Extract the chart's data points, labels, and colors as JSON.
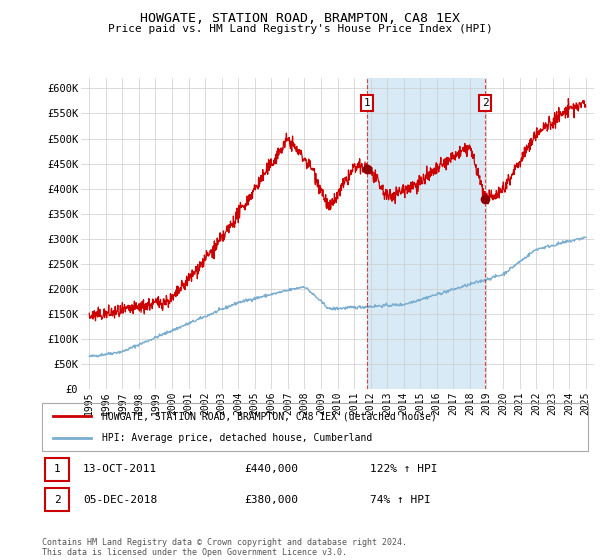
{
  "title": "HOWGATE, STATION ROAD, BRAMPTON, CA8 1EX",
  "subtitle": "Price paid vs. HM Land Registry's House Price Index (HPI)",
  "legend_line1": "HOWGATE, STATION ROAD, BRAMPTON, CA8 1EX (detached house)",
  "legend_line2": "HPI: Average price, detached house, Cumberland",
  "annotation1": {
    "label": "1",
    "date": "13-OCT-2011",
    "price": "£440,000",
    "hpi": "122% ↑ HPI",
    "x_year": 2011.79,
    "y_val": 440000
  },
  "annotation2": {
    "label": "2",
    "date": "05-DEC-2018",
    "price": "£380,000",
    "hpi": "74% ↑ HPI",
    "x_year": 2018.92,
    "y_val": 380000
  },
  "footer": "Contains HM Land Registry data © Crown copyright and database right 2024.\nThis data is licensed under the Open Government Licence v3.0.",
  "red_color": "#cc0000",
  "blue_color": "#7aadcf",
  "highlight_blue": "#d8eaf5",
  "ylim": [
    0,
    620000
  ],
  "yticks": [
    0,
    50000,
    100000,
    150000,
    200000,
    250000,
    300000,
    350000,
    400000,
    450000,
    500000,
    550000,
    600000
  ],
  "ytick_labels": [
    "£0",
    "£50K",
    "£100K",
    "£150K",
    "£200K",
    "£250K",
    "£300K",
    "£350K",
    "£400K",
    "£450K",
    "£500K",
    "£550K",
    "£600K"
  ],
  "xlim_start": 1994.5,
  "xlim_end": 2025.5,
  "xtick_years": [
    1995,
    1996,
    1997,
    1998,
    1999,
    2000,
    2001,
    2002,
    2003,
    2004,
    2005,
    2006,
    2007,
    2008,
    2009,
    2010,
    2011,
    2012,
    2013,
    2014,
    2015,
    2016,
    2017,
    2018,
    2019,
    2020,
    2021,
    2022,
    2023,
    2024,
    2025
  ],
  "highlight_x_start": 2011.79,
  "highlight_x_end": 2018.92
}
